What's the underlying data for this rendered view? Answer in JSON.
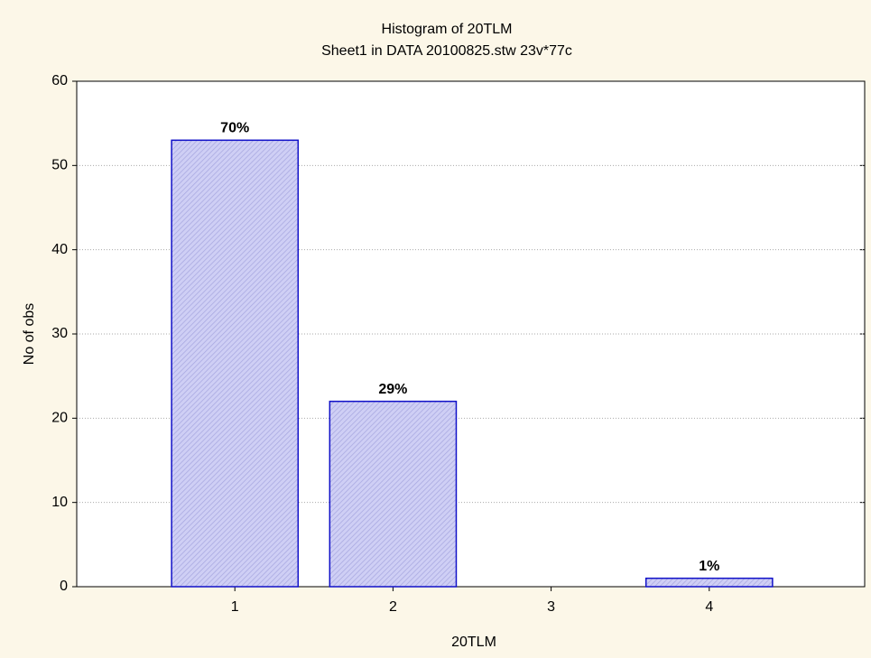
{
  "chart_data": {
    "type": "bar",
    "title": "Histogram of 20TLM",
    "subtitle": "Sheet1 in DATA 20100825.stw 23v*77c",
    "x_label": "20TLM",
    "y_label": "No of obs",
    "categories": [
      "1",
      "2",
      "3",
      "4"
    ],
    "values": [
      53,
      22,
      0,
      1
    ],
    "percent_labels": [
      "70%",
      "29%",
      null,
      "1%"
    ],
    "color": "#c8c8f2",
    "edge_color": "#1010c8",
    "ylim": [
      0,
      60
    ],
    "yticks": [
      0,
      10,
      20,
      30,
      40,
      50,
      60
    ],
    "grid": true
  }
}
